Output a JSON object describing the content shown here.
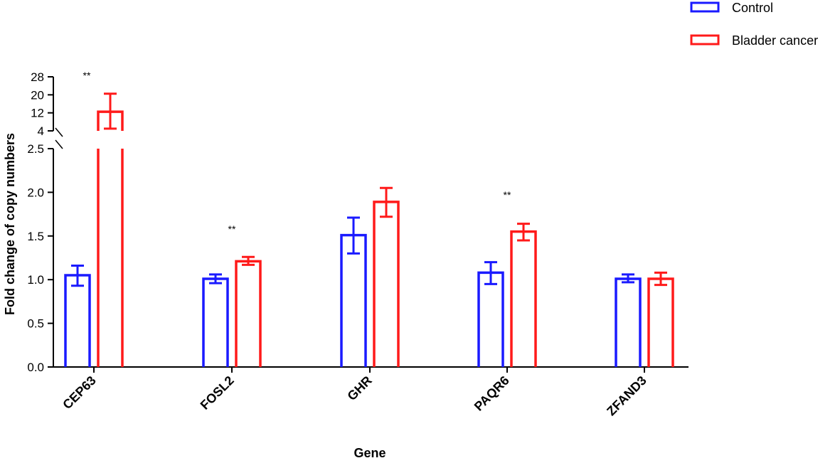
{
  "chart_data": {
    "type": "bar",
    "xlabel": "Gene",
    "ylabel": "Fold change of copy numbers",
    "categories": [
      "CEP63",
      "FOSL2",
      "GHR",
      "PAQR6",
      "ZFAND3"
    ],
    "series": [
      {
        "name": "Control",
        "color": "#1a1aff",
        "values": [
          1.05,
          1.01,
          1.51,
          1.08,
          1.01
        ],
        "error_low": [
          0.93,
          0.96,
          1.3,
          0.95,
          0.97
        ],
        "error_high": [
          1.16,
          1.06,
          1.71,
          1.2,
          1.06
        ]
      },
      {
        "name": "Bladder cancer",
        "color": "#ff1a1a",
        "values": [
          12.5,
          1.21,
          1.89,
          1.55,
          1.01
        ],
        "error_low": [
          5.0,
          1.17,
          1.72,
          1.45,
          0.94
        ],
        "error_high": [
          20.5,
          1.26,
          2.05,
          1.64,
          1.08
        ]
      }
    ],
    "significance": [
      "**",
      "**",
      "",
      "**",
      ""
    ],
    "y_axis": {
      "lower_segment": {
        "range": [
          0,
          2.5
        ],
        "ticks": [
          "0.0",
          "0.5",
          "1.0",
          "1.5",
          "2.0",
          "2.5"
        ]
      },
      "upper_segment": {
        "range": [
          4,
          28
        ],
        "ticks": [
          "4",
          "12",
          "20",
          "28"
        ]
      },
      "axis_break": [
        2.5,
        4
      ]
    },
    "legend_position": "top-right"
  }
}
